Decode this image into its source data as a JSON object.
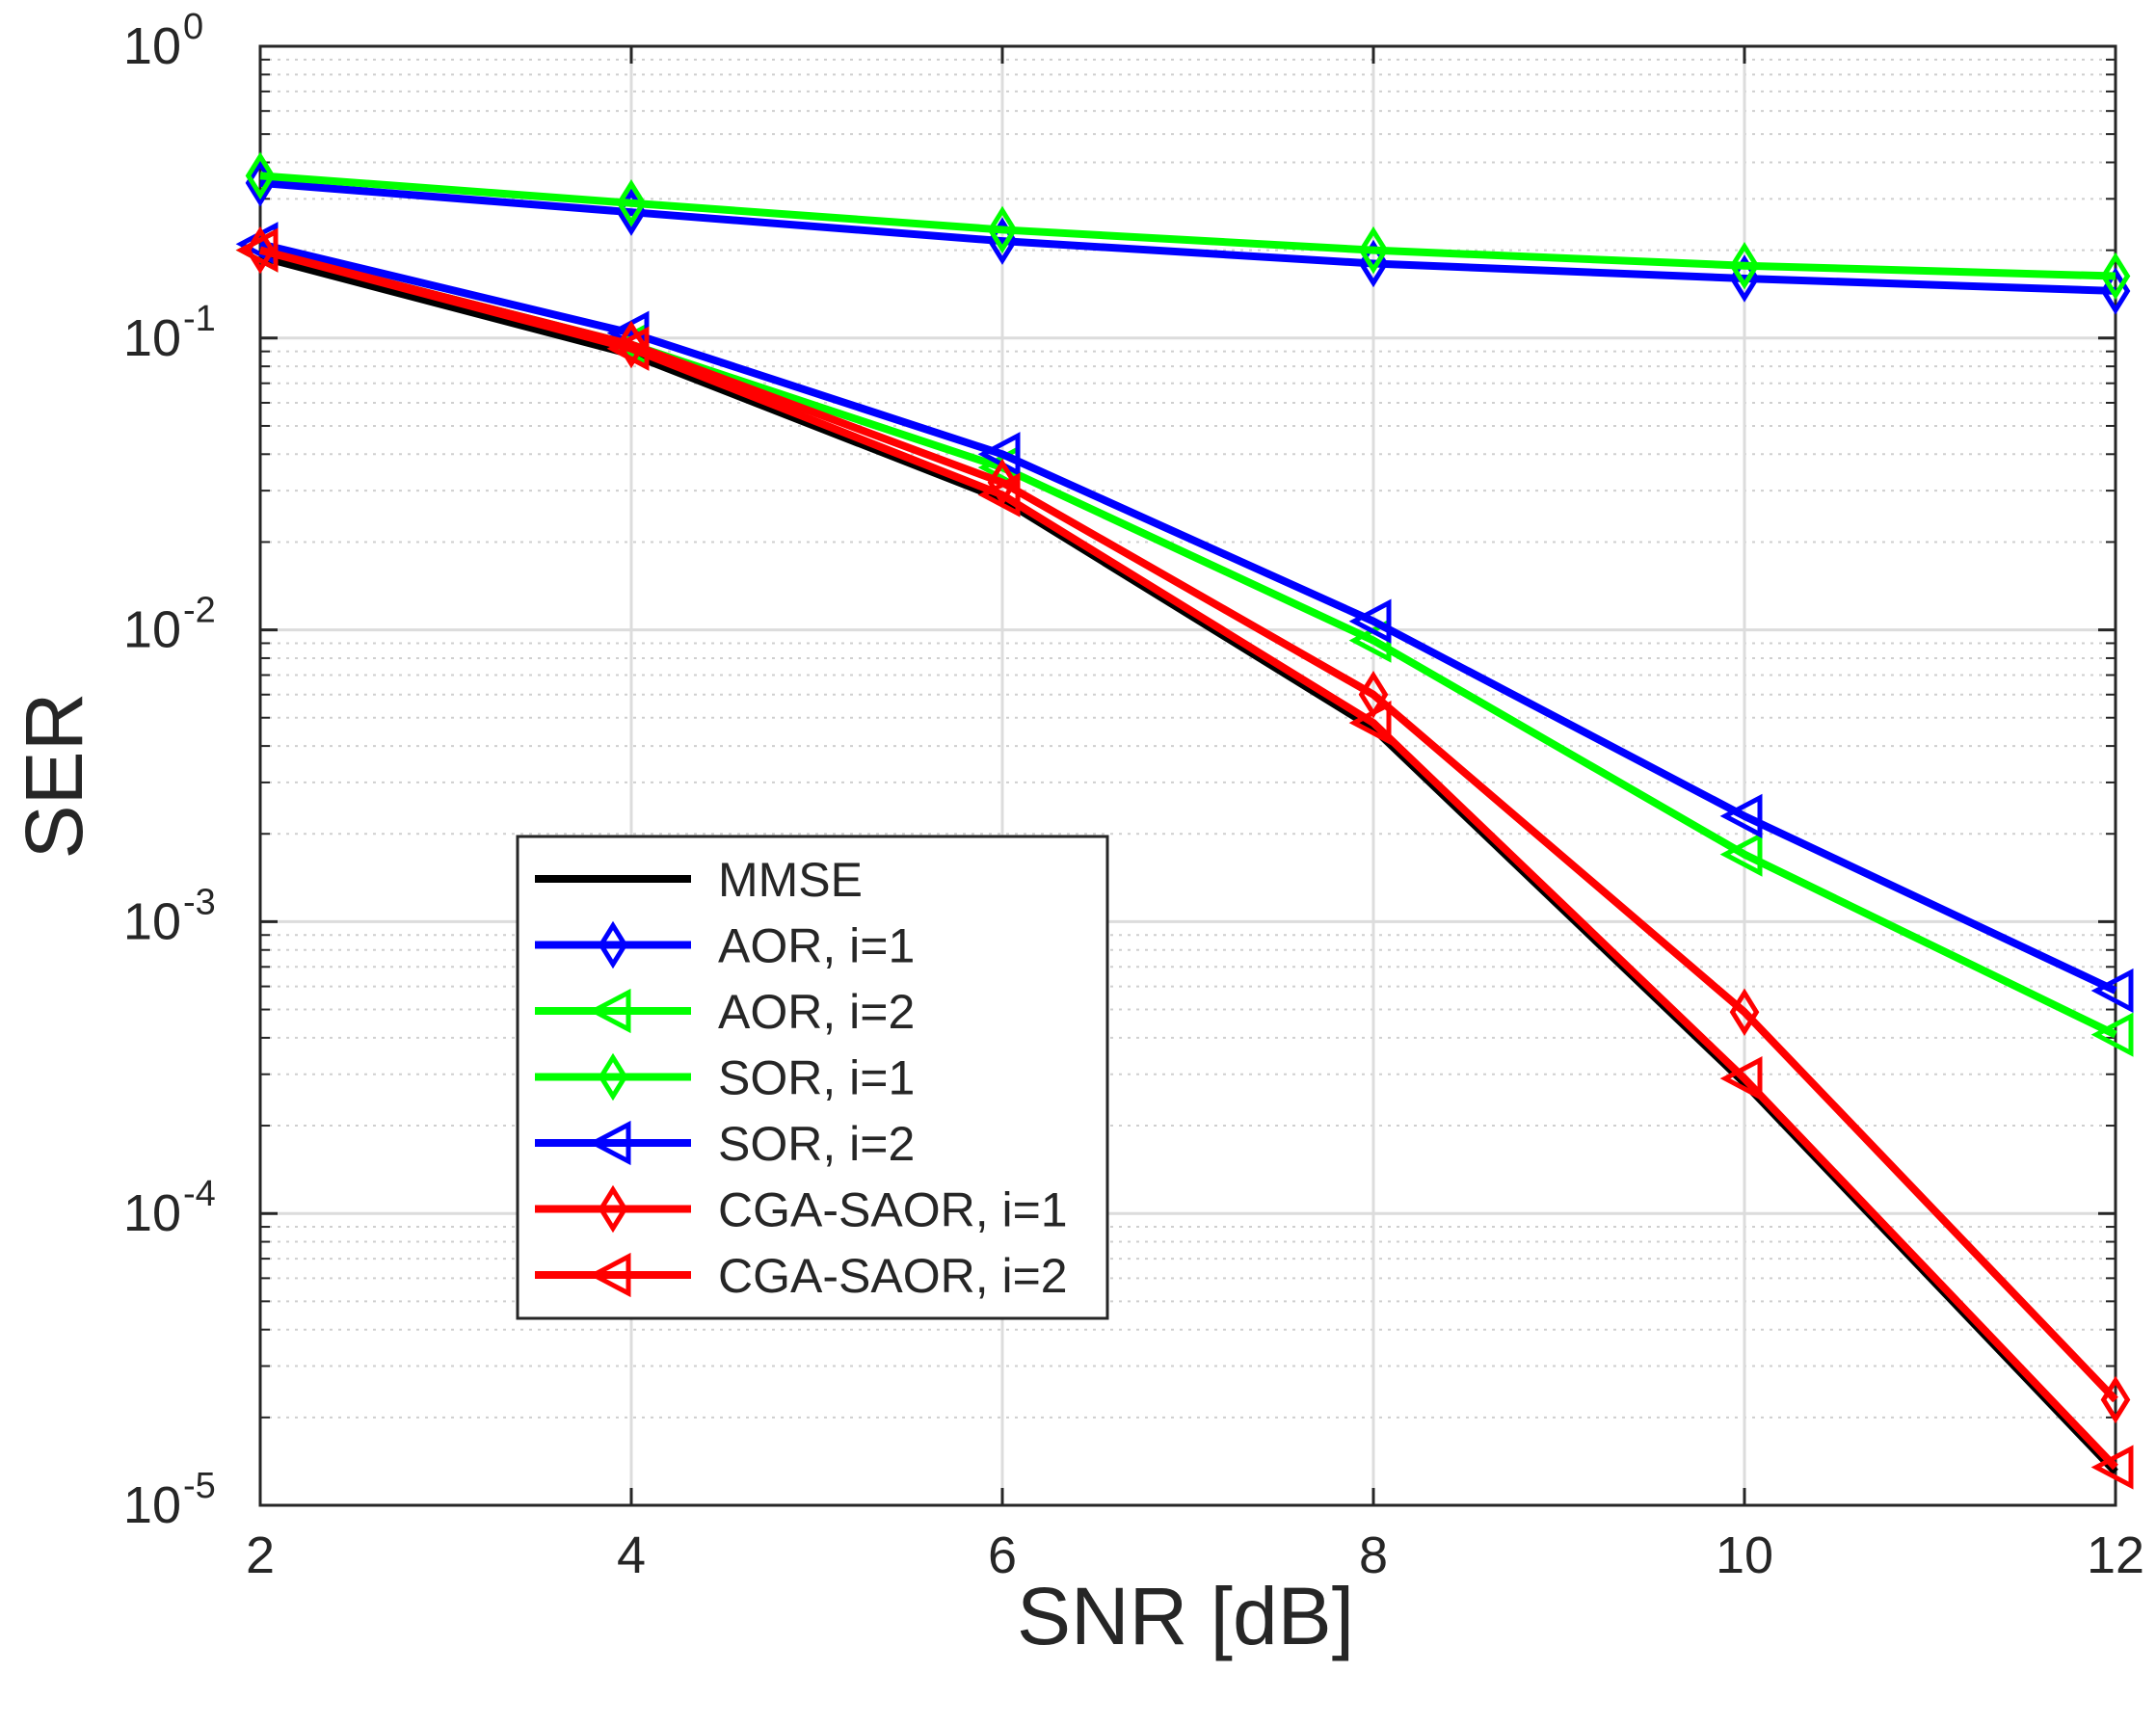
{
  "chart_data": {
    "type": "line",
    "xlabel": "SNR [dB]",
    "ylabel": "SER",
    "xlim": [
      2,
      12
    ],
    "ylim": [
      1e-05,
      1
    ],
    "yscale": "log",
    "grid": true,
    "x": [
      2,
      4,
      6,
      8,
      10,
      12
    ],
    "xticks": [
      "2",
      "4",
      "6",
      "8",
      "10",
      "12"
    ],
    "yticks": [
      {
        "base": "10",
        "exp": "-5",
        "value": 1e-05
      },
      {
        "base": "10",
        "exp": "-4",
        "value": 0.0001
      },
      {
        "base": "10",
        "exp": "-3",
        "value": 0.001
      },
      {
        "base": "10",
        "exp": "-2",
        "value": 0.01
      },
      {
        "base": "10",
        "exp": "-1",
        "value": 0.1
      },
      {
        "base": "10",
        "exp": "0",
        "value": 1
      }
    ],
    "legend_position": "center-left",
    "series": [
      {
        "name": "MMSE",
        "color": "#000000",
        "marker": "none",
        "values": [
          0.19,
          0.088,
          0.028,
          0.0046,
          0.00028,
          1.3e-05
        ]
      },
      {
        "name": "AOR, i=1",
        "color": "#0000ff",
        "marker": "diamond",
        "values": [
          0.34,
          0.27,
          0.215,
          0.18,
          0.16,
          0.145
        ]
      },
      {
        "name": "AOR, i=2",
        "color": "#00ff00",
        "marker": "triangle-left",
        "values": [
          0.2,
          0.095,
          0.036,
          0.0092,
          0.0017,
          0.00041
        ]
      },
      {
        "name": "SOR, i=1",
        "color": "#00ff00",
        "marker": "diamond",
        "values": [
          0.36,
          0.29,
          0.235,
          0.2,
          0.177,
          0.163
        ]
      },
      {
        "name": "SOR, i=2",
        "color": "#0000ff",
        "marker": "triangle-left",
        "values": [
          0.21,
          0.104,
          0.04,
          0.0107,
          0.0023,
          0.00058
        ]
      },
      {
        "name": "CGA-SAOR, i=1",
        "color": "#ff0000",
        "marker": "diamond",
        "values": [
          0.2,
          0.095,
          0.032,
          0.006,
          0.00049,
          2.3e-05
        ]
      },
      {
        "name": "CGA-SAOR, i=2",
        "color": "#ff0000",
        "marker": "triangle-left",
        "values": [
          0.2,
          0.092,
          0.029,
          0.0048,
          0.00029,
          1.35e-05
        ]
      }
    ]
  }
}
